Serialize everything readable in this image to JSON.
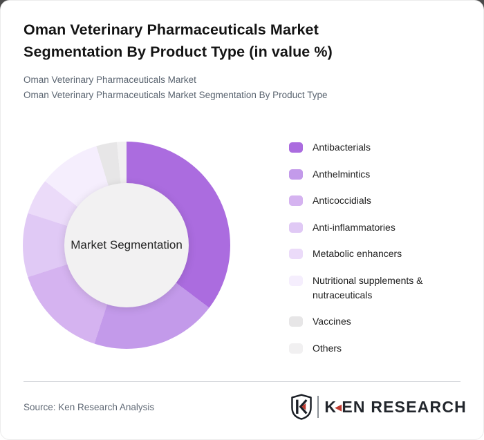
{
  "page": {
    "title": "Oman Veterinary Pharmaceuticals Market Segmentation By Product Type (in value %)",
    "subtitle_line1": "Oman Veterinary Pharmaceuticals Market",
    "subtitle_line2": "Oman Veterinary Pharmaceuticals Market Segmentation By Product Type"
  },
  "chart_data": {
    "type": "pie",
    "variant": "donut",
    "title": "Oman Veterinary Pharmaceuticals Market Segmentation By Product Type (in value %)",
    "center_label": "Market Segmentation",
    "legend_position": "right",
    "start_angle_deg": 0,
    "direction": "clockwise",
    "series": [
      {
        "name": "Antibacterials",
        "value": 35.3,
        "color": "#ab6cdf"
      },
      {
        "name": "Anthelmintics",
        "value": 19.7,
        "color": "#c39aea"
      },
      {
        "name": "Anticoccidials",
        "value": 15.0,
        "color": "#d5b3f0"
      },
      {
        "name": "Anti-inflammatories",
        "value": 10.0,
        "color": "#e0c9f5"
      },
      {
        "name": "Metabolic enhancers",
        "value": 5.6,
        "color": "#ebdbf9"
      },
      {
        "name": "Nutritional supplements & nutraceuticals",
        "value": 9.7,
        "color": "#f5eefd"
      },
      {
        "name": "Vaccines",
        "value": 3.2,
        "color": "#e7e6e7"
      },
      {
        "name": "Others",
        "value": 1.5,
        "color": "#f1f0f1"
      }
    ]
  },
  "footer": {
    "source": "Source: Ken Research Analysis",
    "logo_text": "KEN RESEARCH"
  },
  "colors": {
    "brand_red": "#bf3a30",
    "logo_dark": "#22262c",
    "hole_fill": "#f2f1f2"
  }
}
